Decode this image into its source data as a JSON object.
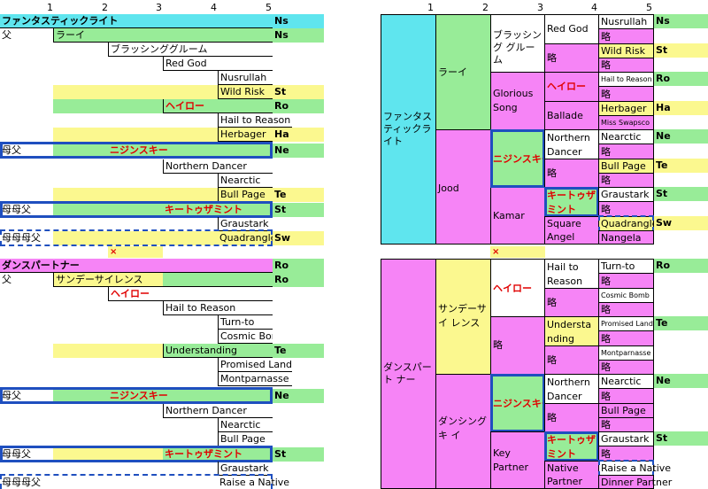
{
  "column_headers": [
    "1",
    "2",
    "3",
    "4",
    "5"
  ],
  "left_top": {
    "horse": "ファンタスティックライト",
    "horse_family": "Ns",
    "sire_label": "父",
    "sire": "ラーイ",
    "sire_family": "Ns",
    "sire_sire": "ブラッシンググルーム",
    "red_god": "Red God",
    "nasrullah": "Nusrullah",
    "wild_risk": "Wild Risk",
    "wild_risk_family": "St",
    "hail_row": "ヘイロー",
    "hail_row_family": "Ro",
    "hail_to_reason": "Hail to Reason",
    "herbager": "Herbager",
    "herbager_family": "Ha",
    "dam_sire_label": "母父",
    "dam_sire": "ニジンスキー",
    "dam_sire_family": "Ne",
    "northern_dancer": "Northern Dancer",
    "nearctic": "Nearctic",
    "bull_page": "Bull Page",
    "bull_page_family": "Te",
    "g_dam_sire_label": "母母父",
    "g_dam_sire": "キートゥザミント",
    "g_dam_sire_family": "St",
    "graustark": "Graustark",
    "ggg_label": "母母母父",
    "quadrangle": "Quadrangle",
    "quadrangle_family": "Sw",
    "cross": "×"
  },
  "left_bottom": {
    "horse": "ダンスパートナー",
    "horse_family": "Ro",
    "sire_label": "父",
    "sire": "サンデーサイレンス",
    "sire_family": "Ro",
    "halo": "ヘイロー",
    "hail_to_reason": "Hail to Reason",
    "turn_to": "Turn-to",
    "cosmic_bomb": "Cosmic Bomb",
    "understanding": "Understanding",
    "understanding_family": "Te",
    "promised_land": "Promised Land",
    "montparnasse": "Montparnasse",
    "dam_sire_label": "母父",
    "dam_sire": "ニジンスキー",
    "dam_sire_family": "Ne",
    "northern_dancer": "Northern Dancer",
    "nearctic": "Nearctic",
    "bull_page": "Bull Page",
    "g_dam_sire_label": "母母父",
    "g_dam_sire": "キートゥザミント",
    "g_dam_sire_family": "St",
    "graustark": "Graustark",
    "ggg_label": "母母母父",
    "raise_a_native": "Raise a Native"
  },
  "right_top": {
    "horse": "ファンタスティックライト",
    "sire": "ラーイ",
    "dam": "Jood",
    "blushing": "ブラッシング グルーム",
    "glorious": "Glorious Song",
    "nijinsky": "ニジンスキー",
    "kamar": "Kamar",
    "red_god": "Red God",
    "ryaku": "略",
    "halo": "ヘイロー",
    "ballade": "Ballade",
    "northern_dancer": "Northern Dancer",
    "key_to_the_mint": "キートゥザミント",
    "square_angel": "Square Angel",
    "nusrullah": "Nusrullah",
    "ns": "Ns",
    "wild_risk": "Wild Risk",
    "st": "St",
    "hail_to_reason": "Hail to Reason",
    "ro": "Ro",
    "herbager": "Herbager",
    "ha": "Ha",
    "miss_swapsco": "Miss Swapsco",
    "nearctic": "Nearctic",
    "ne": "Ne",
    "bull_page": "Bull Page",
    "te": "Te",
    "graustark": "Graustark",
    "quadrangle": "Quadrangle",
    "sw": "Sw",
    "nangela": "Nangela",
    "cross": "×"
  },
  "right_bottom": {
    "horse": "ダンスパート ナー",
    "sire": "サンデーサイ レンス",
    "dam": "ダンシングキ イ",
    "halo": "ヘイロー",
    "ryaku": "略",
    "nijinsky": "ニジンスキー",
    "key_partner": "Key Partner",
    "hail_to_reason": "Hail to Reason",
    "understanding": "Understanding",
    "northern_dancer": "Northern Dancer",
    "key_to_the_mint": "キートゥザミント",
    "native_partner": "Native Partner",
    "turn_to": "Turn-to",
    "ro": "Ro",
    "cosmic_bomb": "Cosmic Bomb",
    "promised_land": "Promised Land",
    "te": "Te",
    "montparnasse": "Montparnasse",
    "nearctic": "Nearctic",
    "ne": "Ne",
    "bull_page": "Bull Page",
    "graustark": "Graustark",
    "st": "St",
    "raise_a_native": "Raise a Native",
    "dinner_partner": "Dinner Partner"
  }
}
